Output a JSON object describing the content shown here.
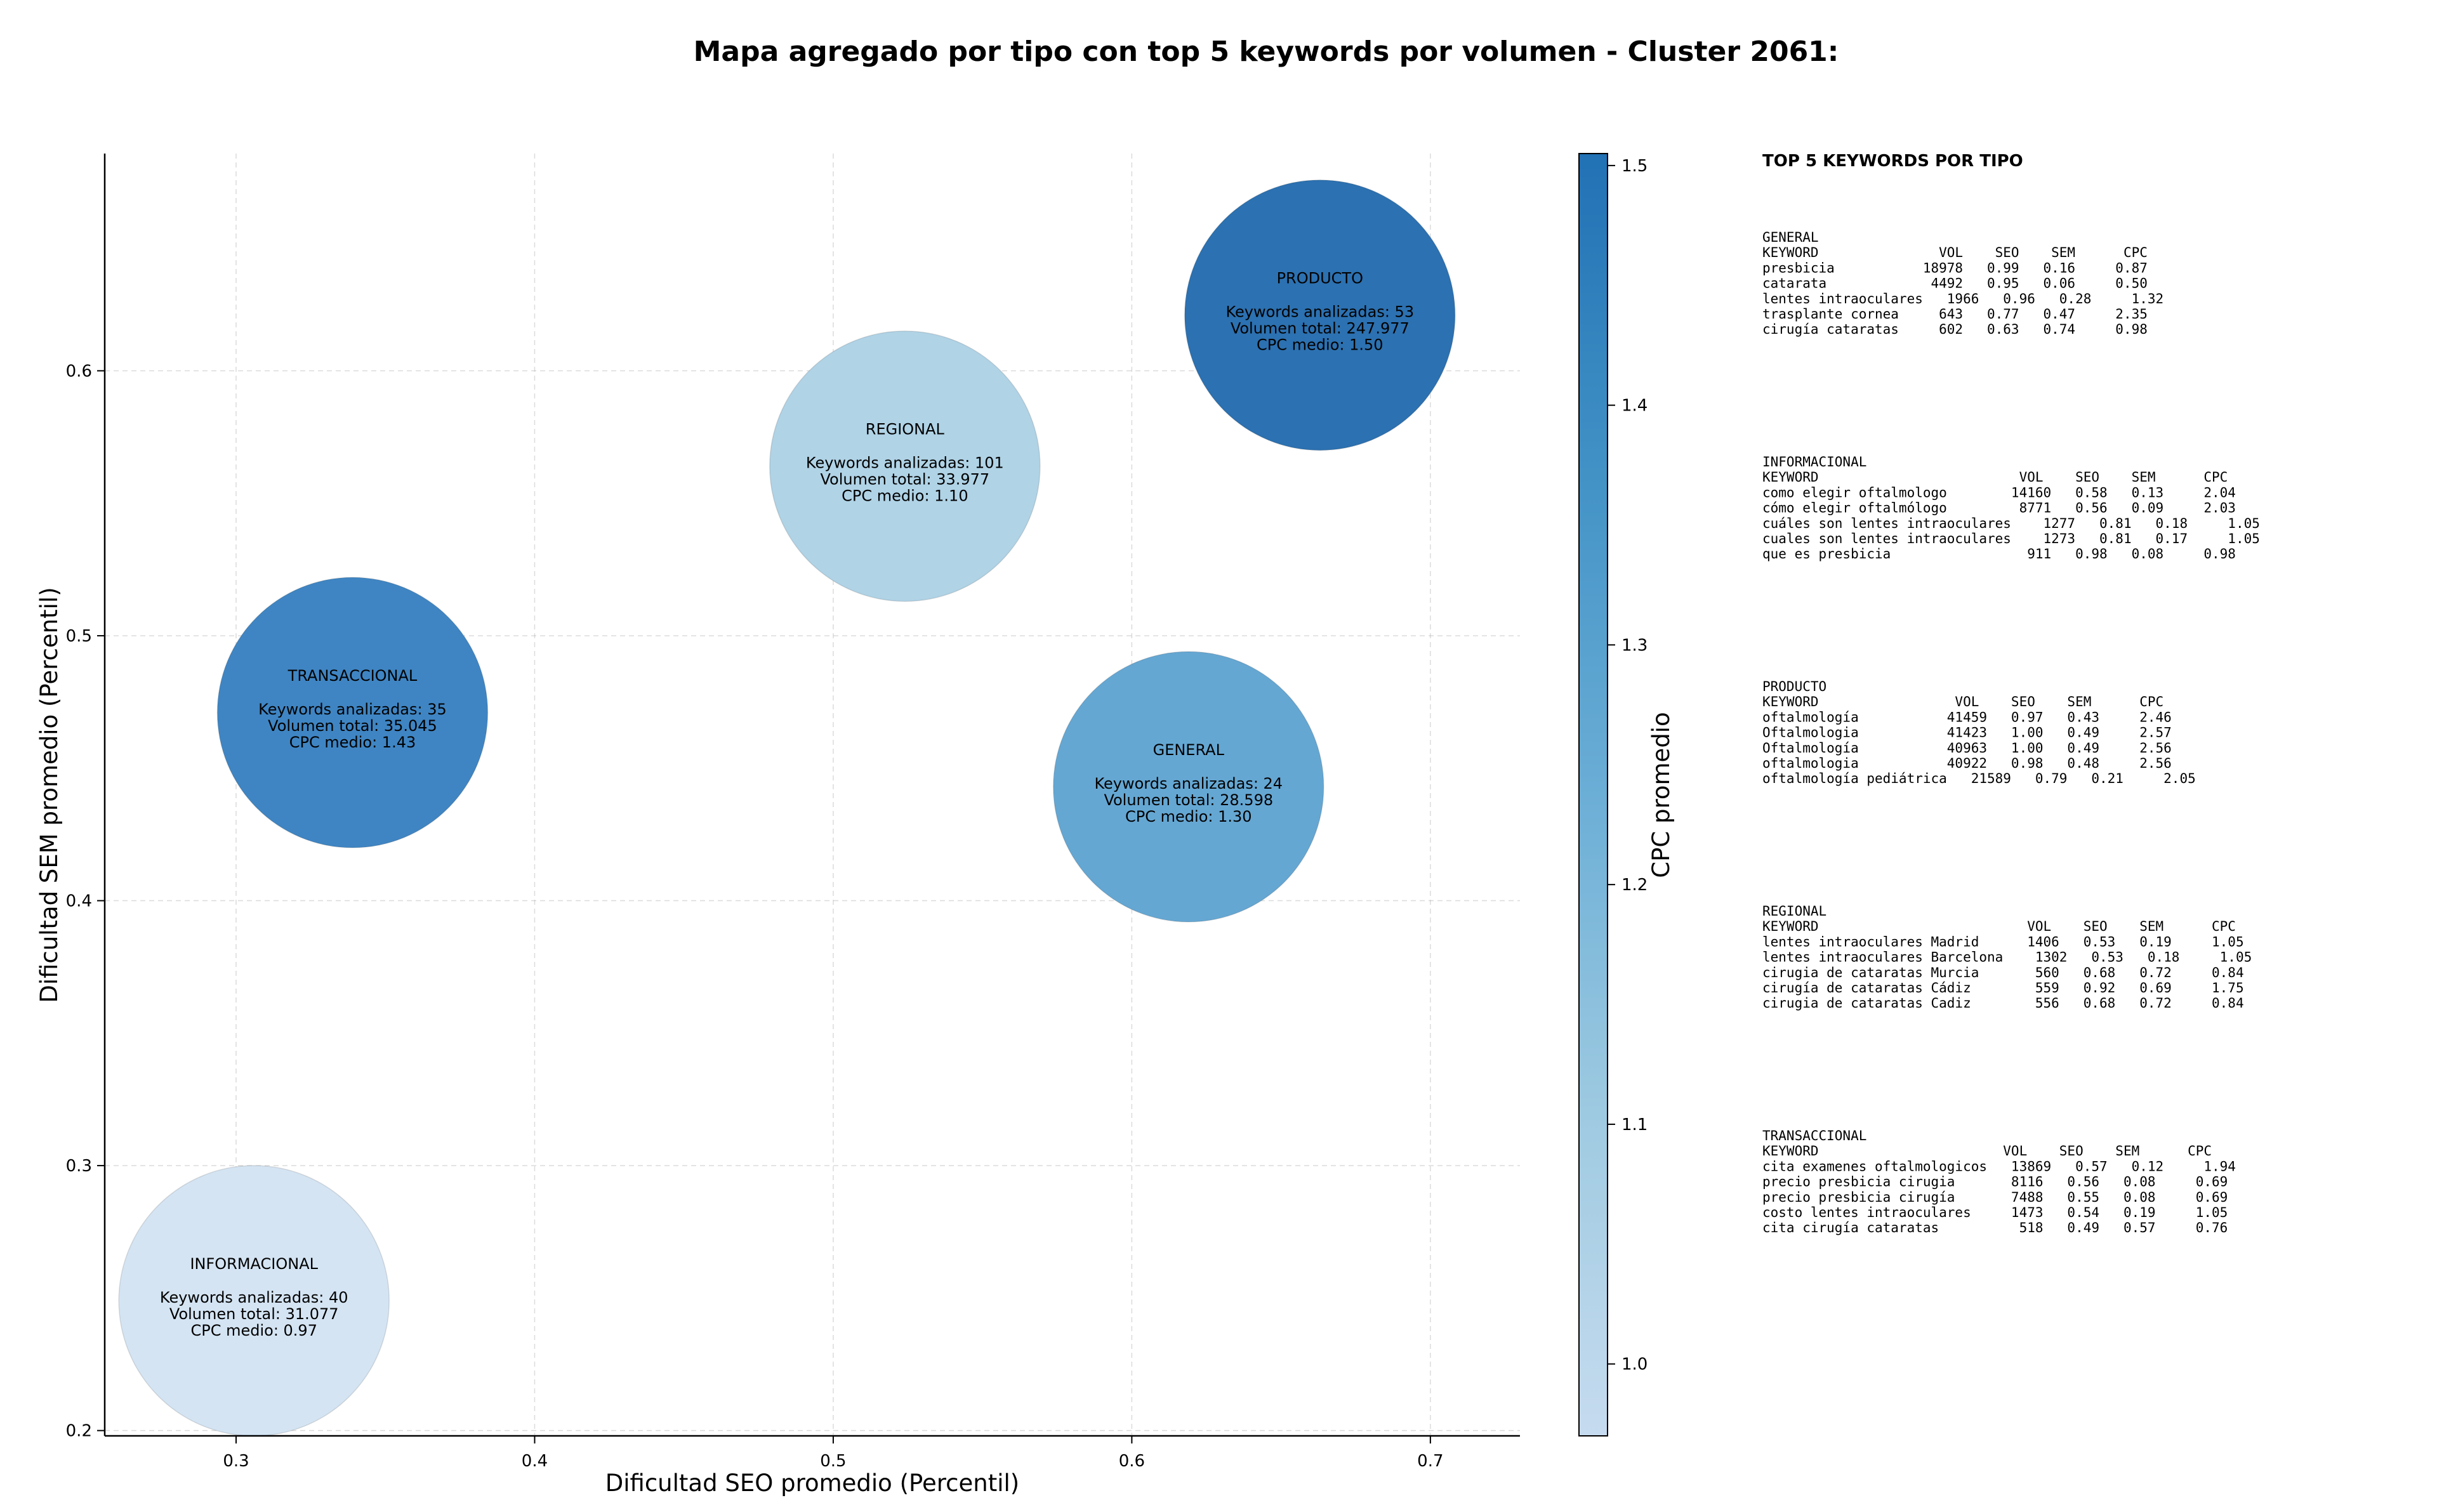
{
  "chart_data": {
    "type": "scatter",
    "title": "Mapa agregado por tipo con top 5 keywords por volumen - Cluster 2061:",
    "xlabel": "Dificultad SEO promedio (Percentil)",
    "ylabel": "Dificultad SEM promedio (Percentil)",
    "xlim": [
      0.256,
      0.73
    ],
    "ylim": [
      0.198,
      0.682
    ],
    "x_ticks": [
      0.3,
      0.4,
      0.5,
      0.6,
      0.7
    ],
    "x_tick_labels": [
      "0.3",
      "0.4",
      "0.5",
      "0.6",
      "0.7"
    ],
    "y_ticks": [
      0.2,
      0.3,
      0.4,
      0.5,
      0.6
    ],
    "y_tick_labels": [
      "0.2",
      "0.3",
      "0.4",
      "0.5",
      "0.6"
    ],
    "grid": true,
    "colorbar": {
      "label": "CPC promedio",
      "range": [
        0.97,
        1.505
      ],
      "ticks": [
        1.0,
        1.1,
        1.2,
        1.3,
        1.4,
        1.5
      ],
      "tick_labels": [
        "1.0",
        "1.1",
        "1.2",
        "1.3",
        "1.4",
        "1.5"
      ],
      "colormap": [
        "#c6dbef",
        "#9ecae1",
        "#6baed6",
        "#4292c6",
        "#2171b5"
      ]
    },
    "bubbles": [
      {
        "name": "PRODUCTO",
        "x": 0.663,
        "y": 0.621,
        "cpc": 1.5,
        "color": "#2c71b1",
        "line1": "Keywords analizadas: 53",
        "line2": "Volumen total: 247.977",
        "line3": "CPC medio: 1.50"
      },
      {
        "name": "REGIONAL",
        "x": 0.524,
        "y": 0.564,
        "cpc": 1.1,
        "color": "#b0d3e6",
        "line1": "Keywords analizadas: 101",
        "line2": "Volumen total: 33.977",
        "line3": "CPC medio: 1.10"
      },
      {
        "name": "TRANSACCIONAL",
        "x": 0.339,
        "y": 0.471,
        "cpc": 1.43,
        "color": "#3f85c3",
        "line1": "Keywords analizadas: 35",
        "line2": "Volumen total: 35.045",
        "line3": "CPC medio: 1.43"
      },
      {
        "name": "GENERAL",
        "x": 0.619,
        "y": 0.443,
        "cpc": 1.3,
        "color": "#65a7d3",
        "line1": "Keywords analizadas: 24",
        "line2": "Volumen total: 28.598",
        "line3": "CPC medio: 1.30"
      },
      {
        "name": "INFORMACIONAL",
        "x": 0.306,
        "y": 0.249,
        "cpc": 0.97,
        "color": "#d4e4f3",
        "line1": "Keywords analizadas: 40",
        "line2": "Volumen total: 31.077",
        "line3": "CPC medio: 0.97"
      }
    ]
  },
  "side_panel": {
    "heading": "TOP 5 KEYWORDS POR TIPO",
    "blocks": [
      {
        "type": "GENERAL",
        "header": "KEYWORD               VOL    SEO    SEM      CPC",
        "rows": [
          "presbicia           18978   0.99   0.16     0.87",
          "catarata             4492   0.95   0.06     0.50",
          "lentes intraoculares   1966   0.96   0.28     1.32",
          "trasplante cornea     643   0.77   0.47     2.35",
          "cirugía cataratas     602   0.63   0.74     0.98"
        ]
      },
      {
        "type": "INFORMACIONAL",
        "header": "KEYWORD                         VOL    SEO    SEM      CPC",
        "rows": [
          "como elegir oftalmologo        14160   0.58   0.13     2.04",
          "cómo elegir oftalmólogo         8771   0.56   0.09     2.03",
          "cuáles son lentes intraoculares    1277   0.81   0.18     1.05",
          "cuales son lentes intraoculares    1273   0.81   0.17     1.05",
          "que es presbicia                 911   0.98   0.08     0.98"
        ]
      },
      {
        "type": "PRODUCTO",
        "header": "KEYWORD                 VOL    SEO    SEM      CPC",
        "rows": [
          "oftalmología           41459   0.97   0.43     2.46",
          "Oftalmologia           41423   1.00   0.49     2.57",
          "Oftalmología           40963   1.00   0.49     2.56",
          "oftalmologia           40922   0.98   0.48     2.56",
          "oftalmología pediátrica   21589   0.79   0.21     2.05"
        ]
      },
      {
        "type": "REGIONAL",
        "header": "KEYWORD                          VOL    SEO    SEM      CPC",
        "rows": [
          "lentes intraoculares Madrid      1406   0.53   0.19     1.05",
          "lentes intraoculares Barcelona    1302   0.53   0.18     1.05",
          "cirugia de cataratas Murcia       560   0.68   0.72     0.84",
          "cirugía de cataratas Cádiz        559   0.92   0.69     1.75",
          "cirugia de cataratas Cadiz        556   0.68   0.72     0.84"
        ]
      },
      {
        "type": "TRANSACCIONAL",
        "header": "KEYWORD                       VOL    SEO    SEM      CPC",
        "rows": [
          "cita examenes oftalmologicos   13869   0.57   0.12     1.94",
          "precio presbicia cirugia       8116   0.56   0.08     0.69",
          "precio presbicia cirugía       7488   0.55   0.08     0.69",
          "costo lentes intraoculares     1473   0.54   0.19     1.05",
          "cita cirugía cataratas          518   0.49   0.57     0.76"
        ]
      }
    ]
  }
}
